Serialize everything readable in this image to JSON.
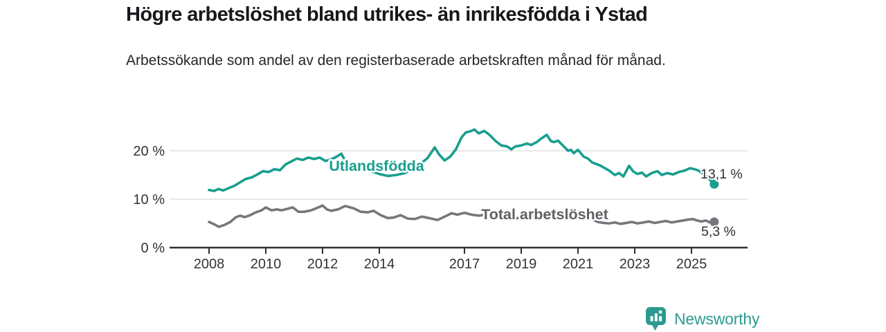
{
  "title": "Högre arbetslöshet bland utrikes- än inrikesfödda i Ystad",
  "subtitle": "Arbetssökande som andel av den registerbaserade arbetskraften månad för månad.",
  "footer": {
    "brand": "Newsworthy"
  },
  "colors": {
    "teal": "#189e8e",
    "gray_line": "#76767c",
    "gray_label": "#606066",
    "axis": "#2f2f33",
    "grid": "#d9d9d9",
    "text": "#333333"
  },
  "chart_data": {
    "type": "line",
    "title": "Högre arbetslöshet bland utrikes- än inrikesfödda i Ystad",
    "subtitle": "Arbetssökande som andel av den registerbaserade arbetskraften månad för månad.",
    "unit": "%",
    "x_ticks": [
      2008,
      2010,
      2012,
      2014,
      2017,
      2019,
      2021,
      2023,
      2025
    ],
    "y_ticks": [
      0,
      10,
      20
    ],
    "y_tick_labels": [
      "0 %",
      "10 %",
      "20 %"
    ],
    "ylim": [
      0,
      27
    ],
    "xlim": [
      2007.6,
      2026.4
    ],
    "grid": "horizontal",
    "legend_position": "inline-labels",
    "series": [
      {
        "name": "Utlandsfödda",
        "color": "#189e8e",
        "end_label": "13,1 %",
        "end_value": 13.1,
        "points": [
          [
            2008.0,
            11.9
          ],
          [
            2008.17,
            11.7
          ],
          [
            2008.33,
            12.1
          ],
          [
            2008.5,
            11.8
          ],
          [
            2008.7,
            12.3
          ],
          [
            2008.9,
            12.8
          ],
          [
            2009.1,
            13.5
          ],
          [
            2009.3,
            14.2
          ],
          [
            2009.5,
            14.5
          ],
          [
            2009.7,
            15.1
          ],
          [
            2009.9,
            15.8
          ],
          [
            2010.1,
            15.6
          ],
          [
            2010.3,
            16.2
          ],
          [
            2010.5,
            16.0
          ],
          [
            2010.7,
            17.2
          ],
          [
            2010.9,
            17.8
          ],
          [
            2011.1,
            18.4
          ],
          [
            2011.3,
            18.1
          ],
          [
            2011.5,
            18.6
          ],
          [
            2011.7,
            18.3
          ],
          [
            2011.9,
            18.6
          ],
          [
            2012.1,
            17.9
          ],
          [
            2012.3,
            18.2
          ],
          [
            2012.5,
            18.8
          ],
          [
            2012.66,
            19.4
          ],
          [
            2012.85,
            17.4
          ],
          [
            2013.1,
            17.0
          ],
          [
            2013.4,
            16.4
          ],
          [
            2013.7,
            15.8
          ],
          [
            2014.0,
            15.2
          ],
          [
            2014.3,
            14.8
          ],
          [
            2014.6,
            15.0
          ],
          [
            2014.9,
            15.4
          ],
          [
            2015.2,
            16.4
          ],
          [
            2015.45,
            17.3
          ],
          [
            2015.7,
            18.5
          ],
          [
            2015.95,
            20.7
          ],
          [
            2016.1,
            19.3
          ],
          [
            2016.3,
            18.0
          ],
          [
            2016.5,
            18.8
          ],
          [
            2016.7,
            20.3
          ],
          [
            2016.9,
            22.8
          ],
          [
            2017.05,
            23.8
          ],
          [
            2017.2,
            24.0
          ],
          [
            2017.35,
            24.4
          ],
          [
            2017.5,
            23.6
          ],
          [
            2017.7,
            24.1
          ],
          [
            2017.9,
            23.2
          ],
          [
            2018.1,
            22.0
          ],
          [
            2018.3,
            21.1
          ],
          [
            2018.5,
            20.9
          ],
          [
            2018.65,
            20.3
          ],
          [
            2018.8,
            20.9
          ],
          [
            2019.0,
            21.1
          ],
          [
            2019.2,
            21.5
          ],
          [
            2019.35,
            21.2
          ],
          [
            2019.55,
            21.8
          ],
          [
            2019.7,
            22.5
          ],
          [
            2019.9,
            23.3
          ],
          [
            2020.05,
            22.0
          ],
          [
            2020.15,
            21.8
          ],
          [
            2020.3,
            22.1
          ],
          [
            2020.45,
            21.2
          ],
          [
            2020.65,
            20.0
          ],
          [
            2020.75,
            20.2
          ],
          [
            2020.85,
            19.5
          ],
          [
            2021.0,
            20.2
          ],
          [
            2021.2,
            18.8
          ],
          [
            2021.35,
            18.4
          ],
          [
            2021.5,
            17.6
          ],
          [
            2021.8,
            16.9
          ],
          [
            2022.1,
            15.9
          ],
          [
            2022.3,
            15.0
          ],
          [
            2022.45,
            15.4
          ],
          [
            2022.6,
            14.7
          ],
          [
            2022.8,
            16.9
          ],
          [
            2022.95,
            15.7
          ],
          [
            2023.1,
            15.2
          ],
          [
            2023.25,
            15.5
          ],
          [
            2023.4,
            14.7
          ],
          [
            2023.6,
            15.4
          ],
          [
            2023.8,
            15.8
          ],
          [
            2023.95,
            15.0
          ],
          [
            2024.15,
            15.4
          ],
          [
            2024.35,
            15.1
          ],
          [
            2024.55,
            15.6
          ],
          [
            2024.75,
            15.9
          ],
          [
            2024.95,
            16.4
          ],
          [
            2025.1,
            16.2
          ],
          [
            2025.25,
            15.9
          ],
          [
            2025.4,
            15.3
          ],
          [
            2025.55,
            14.6
          ],
          [
            2025.8,
            13.1
          ]
        ]
      },
      {
        "name": "Total arbetslöshet",
        "color": "#76767c",
        "end_label": "5,3 %",
        "end_value": 5.3,
        "points": [
          [
            2008.0,
            5.3
          ],
          [
            2008.15,
            4.9
          ],
          [
            2008.35,
            4.3
          ],
          [
            2008.55,
            4.7
          ],
          [
            2008.75,
            5.3
          ],
          [
            2008.95,
            6.3
          ],
          [
            2009.1,
            6.6
          ],
          [
            2009.25,
            6.3
          ],
          [
            2009.45,
            6.7
          ],
          [
            2009.65,
            7.3
          ],
          [
            2009.85,
            7.7
          ],
          [
            2010.0,
            8.3
          ],
          [
            2010.2,
            7.7
          ],
          [
            2010.4,
            7.9
          ],
          [
            2010.55,
            7.7
          ],
          [
            2010.75,
            8.0
          ],
          [
            2010.95,
            8.3
          ],
          [
            2011.15,
            7.4
          ],
          [
            2011.35,
            7.4
          ],
          [
            2011.6,
            7.7
          ],
          [
            2011.85,
            8.3
          ],
          [
            2012.0,
            8.7
          ],
          [
            2012.15,
            7.9
          ],
          [
            2012.3,
            7.6
          ],
          [
            2012.55,
            7.9
          ],
          [
            2012.8,
            8.6
          ],
          [
            2013.1,
            8.1
          ],
          [
            2013.35,
            7.4
          ],
          [
            2013.6,
            7.3
          ],
          [
            2013.8,
            7.6
          ],
          [
            2014.05,
            6.7
          ],
          [
            2014.3,
            6.1
          ],
          [
            2014.5,
            6.2
          ],
          [
            2014.75,
            6.7
          ],
          [
            2015.0,
            6.0
          ],
          [
            2015.25,
            5.9
          ],
          [
            2015.5,
            6.4
          ],
          [
            2015.75,
            6.1
          ],
          [
            2016.05,
            5.7
          ],
          [
            2016.3,
            6.4
          ],
          [
            2016.55,
            7.1
          ],
          [
            2016.75,
            6.8
          ],
          [
            2017.0,
            7.2
          ],
          [
            2017.25,
            6.8
          ],
          [
            2017.5,
            6.6
          ],
          [
            2017.75,
            6.8
          ],
          [
            2018.0,
            6.4
          ],
          [
            2018.25,
            6.1
          ],
          [
            2018.5,
            6.3
          ],
          [
            2018.75,
            6.0
          ],
          [
            2019.0,
            6.2
          ],
          [
            2019.25,
            6.4
          ],
          [
            2019.5,
            6.6
          ],
          [
            2019.75,
            6.4
          ],
          [
            2020.0,
            6.7
          ],
          [
            2020.25,
            7.3
          ],
          [
            2020.5,
            7.5
          ],
          [
            2020.75,
            7.2
          ],
          [
            2021.0,
            6.8
          ],
          [
            2021.25,
            6.3
          ],
          [
            2021.5,
            5.8
          ],
          [
            2021.7,
            5.3
          ],
          [
            2021.9,
            5.1
          ],
          [
            2022.1,
            5.0
          ],
          [
            2022.3,
            5.2
          ],
          [
            2022.5,
            4.9
          ],
          [
            2022.7,
            5.1
          ],
          [
            2022.9,
            5.3
          ],
          [
            2023.1,
            5.0
          ],
          [
            2023.3,
            5.2
          ],
          [
            2023.5,
            5.4
          ],
          [
            2023.7,
            5.1
          ],
          [
            2023.9,
            5.3
          ],
          [
            2024.1,
            5.5
          ],
          [
            2024.3,
            5.2
          ],
          [
            2024.5,
            5.4
          ],
          [
            2024.7,
            5.6
          ],
          [
            2024.9,
            5.8
          ],
          [
            2025.05,
            5.9
          ],
          [
            2025.2,
            5.6
          ],
          [
            2025.35,
            5.4
          ],
          [
            2025.5,
            5.6
          ],
          [
            2025.65,
            5.2
          ],
          [
            2025.8,
            5.3
          ]
        ]
      }
    ]
  }
}
